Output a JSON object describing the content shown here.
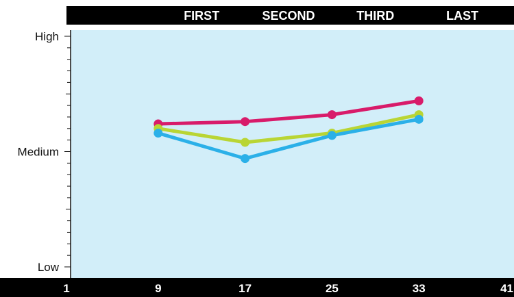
{
  "chart_data": {
    "type": "line",
    "title": "",
    "xlabel": "",
    "ylabel": "",
    "stage_labels": [
      {
        "label": "FIRST",
        "x": 13
      },
      {
        "label": "SECOND",
        "x": 21
      },
      {
        "label": "THIRD",
        "x": 29
      },
      {
        "label": "LAST",
        "x": 37
      }
    ],
    "x_ticks": [
      "1",
      "9",
      "17",
      "25",
      "33",
      "41"
    ],
    "xlim": [
      1,
      41
    ],
    "y_labels": [
      {
        "label": "High",
        "value": 1.0
      },
      {
        "label": "Medium",
        "value": 0.5
      },
      {
        "label": "Low",
        "value": 0.0
      }
    ],
    "ylim": [
      0,
      1
    ],
    "grid": false,
    "x": [
      9,
      17,
      25,
      33
    ],
    "series": [
      {
        "color": "#d81b6a",
        "values": [
          0.62,
          0.63,
          0.66,
          0.72
        ]
      },
      {
        "color": "#b9d534",
        "values": [
          0.6,
          0.54,
          0.58,
          0.66
        ]
      },
      {
        "color": "#2bb0e8",
        "values": [
          0.58,
          0.47,
          0.57,
          0.64
        ]
      }
    ]
  },
  "colors": {
    "plot_background": "#d2eef9",
    "band": "#000000",
    "axis": "#111111"
  }
}
